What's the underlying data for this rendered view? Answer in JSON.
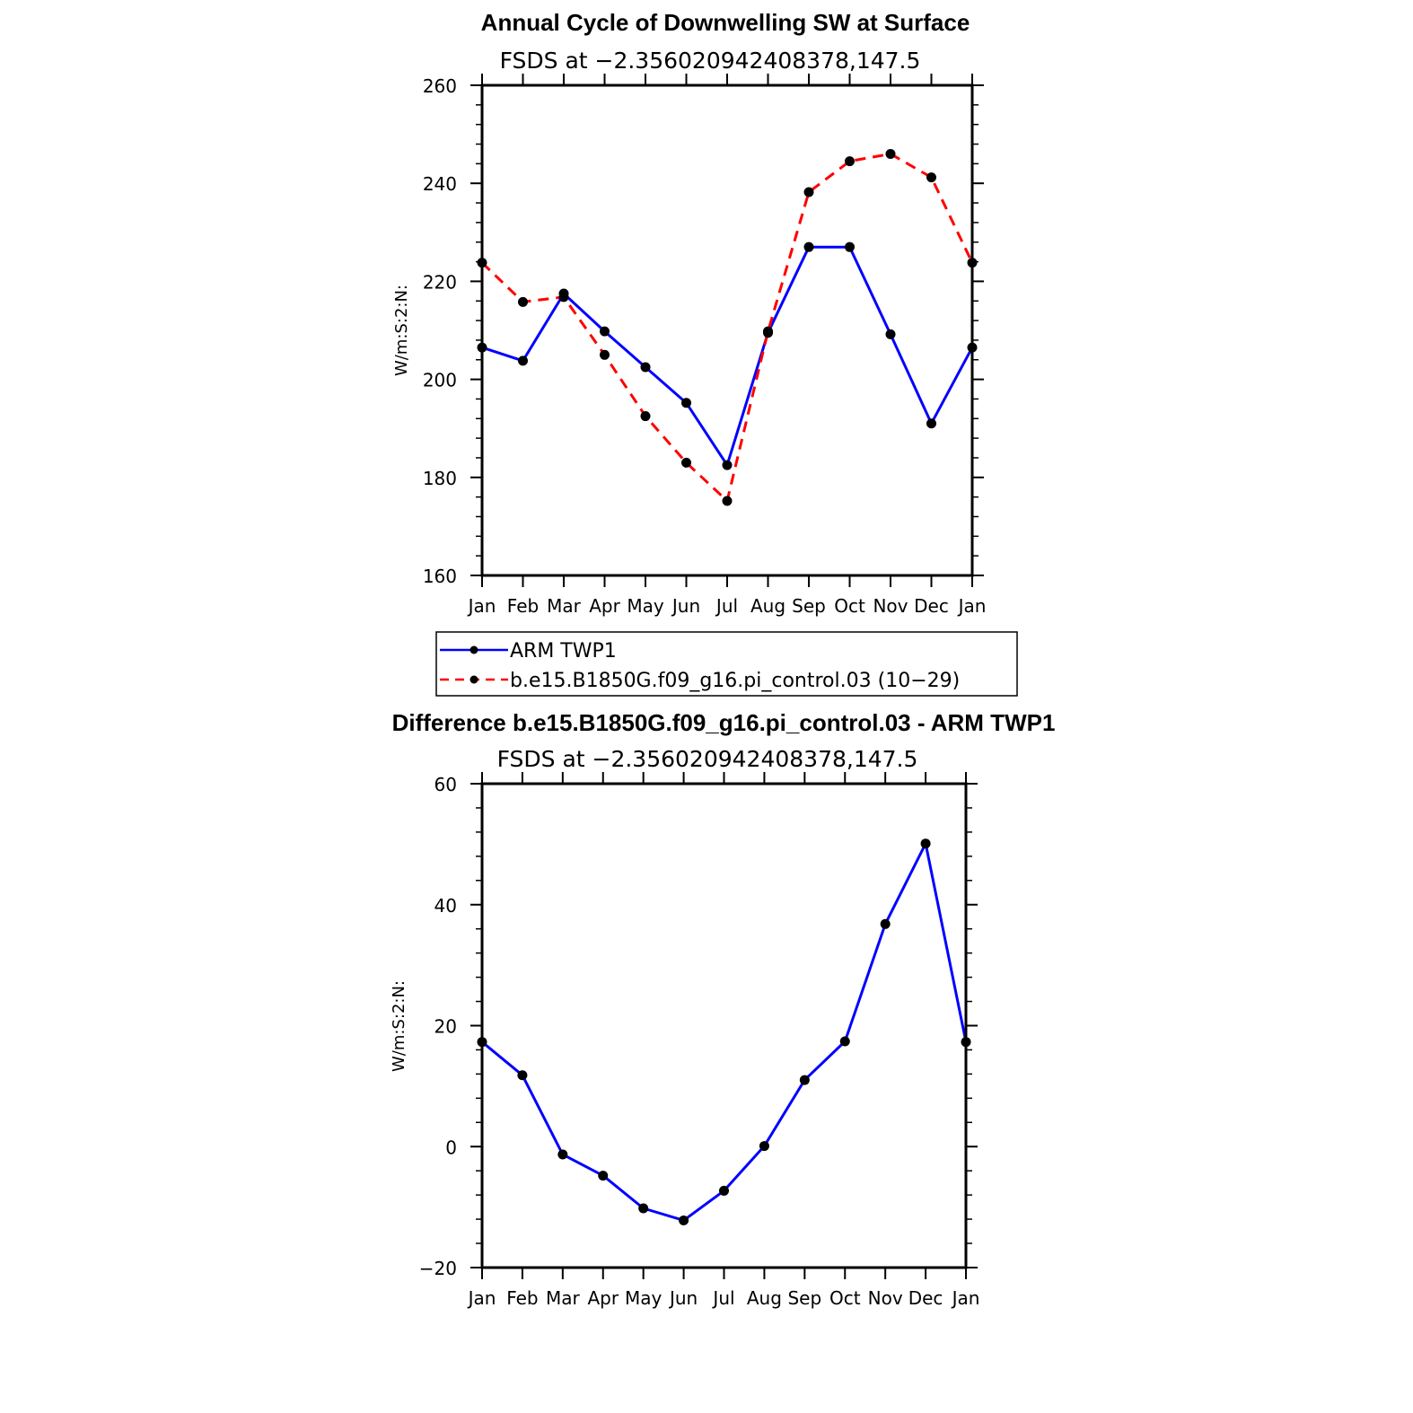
{
  "chart_data": [
    {
      "type": "line",
      "title": "Annual Cycle of Downwelling SW at Surface",
      "subtitle": "FSDS at −2.356020942408378,147.5",
      "xlabel": "",
      "ylabel": "W/m:S:2:N:",
      "categories": [
        "Jan",
        "Feb",
        "Mar",
        "Apr",
        "May",
        "Jun",
        "Jul",
        "Aug",
        "Sep",
        "Oct",
        "Nov",
        "Dec",
        "Jan"
      ],
      "ylim": [
        160,
        260
      ],
      "yticks": [
        160,
        180,
        200,
        220,
        240,
        260
      ],
      "ytick_labels": [
        "160",
        "180",
        "200",
        "220",
        "240",
        "260"
      ],
      "grid": false,
      "series": [
        {
          "name": "ARM TWP1",
          "color": "#0000ff",
          "line_style": "solid",
          "marker": "filled-circle",
          "values": [
            206.5,
            203.8,
            217.5,
            209.8,
            202.5,
            195.2,
            182.5,
            209.5,
            227.0,
            227.0,
            209.2,
            191.0,
            206.5
          ]
        },
        {
          "name": "b.e15.B1850G.f09_g16.pi_control.03 (10−29)",
          "color": "#ff0000",
          "line_style": "dashed",
          "marker": "filled-circle",
          "values": [
            223.8,
            215.8,
            216.8,
            205.0,
            192.5,
            183.0,
            175.2,
            209.8,
            238.2,
            244.5,
            246.0,
            241.2,
            223.8
          ]
        }
      ],
      "legend": {
        "placement": "below",
        "entries": [
          "ARM TWP1",
          "b.e15.B1850G.f09_g16.pi_control.03 (10−29)"
        ]
      }
    },
    {
      "type": "line",
      "title": "Difference b.e15.B1850G.f09_g16.pi_control.03 - ARM TWP1",
      "subtitle": "FSDS at −2.356020942408378,147.5",
      "xlabel": "",
      "ylabel": "W/m:S:2:N:",
      "categories": [
        "Jan",
        "Feb",
        "Mar",
        "Apr",
        "May",
        "Jun",
        "Jul",
        "Aug",
        "Sep",
        "Oct",
        "Nov",
        "Dec",
        "Jan"
      ],
      "ylim": [
        -20,
        60
      ],
      "yticks": [
        -20,
        0,
        20,
        40,
        60
      ],
      "ytick_labels": [
        "−20",
        "0",
        "20",
        "40",
        "60"
      ],
      "grid": false,
      "series": [
        {
          "color": "#0000ff",
          "line_style": "solid",
          "marker": "filled-circle",
          "values": [
            17.3,
            11.8,
            -1.3,
            -4.8,
            -10.2,
            -12.2,
            -7.3,
            0.1,
            11.0,
            17.4,
            36.8,
            50.1,
            17.3
          ]
        }
      ]
    }
  ]
}
